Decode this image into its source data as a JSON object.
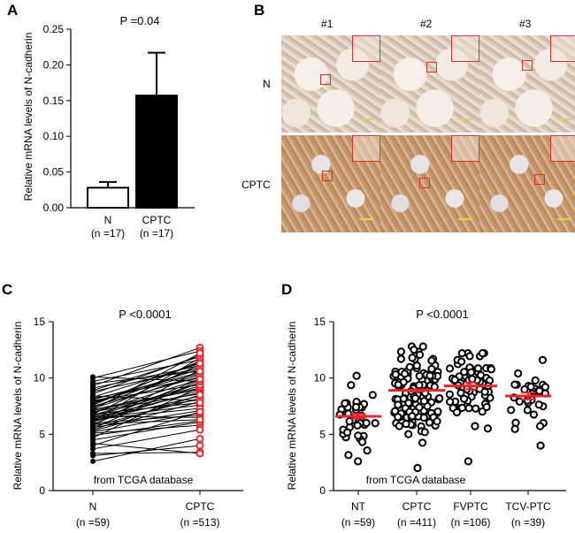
{
  "panel_labels": [
    "A",
    "B",
    "C",
    "D"
  ],
  "ihc": {
    "columns": [
      "#1",
      "#2",
      "#3"
    ],
    "rows": [
      "N",
      "CPTC"
    ]
  },
  "chart_data": [
    {
      "type": "bar",
      "panel": "A",
      "annotation": "P =0.04",
      "ylabel": "Relative mRNA levels of N-cadherin",
      "xlabel": "",
      "ylim": [
        0,
        0.25
      ],
      "yticks": [
        "0.00",
        "0.05",
        "0.10",
        "0.15",
        "0.20",
        "0.25"
      ],
      "categories": [
        "N",
        "CPTC"
      ],
      "category_sublabels": [
        "(n =17)",
        "(n =17)"
      ],
      "values": [
        0.028,
        0.157
      ],
      "errors": [
        0.008,
        0.06
      ],
      "bar_colors": [
        "#ffffff",
        "#000000"
      ]
    },
    {
      "type": "line",
      "panel": "C",
      "annotation": "P <0.0001",
      "ylabel": "Relative mRNA levels of  N-cadherin",
      "ylim": [
        0,
        15
      ],
      "yticks": [
        "0",
        "5",
        "10",
        "15"
      ],
      "categories": [
        "N",
        "CPTC"
      ],
      "category_sublabels": [
        "(n =59)",
        "(n =513)"
      ],
      "note": "from TCGA database",
      "colors": {
        "N": "#000000",
        "CPTC": "#e8262b"
      },
      "pairs": [
        [
          6.5,
          8.7
        ],
        [
          7.2,
          9.1
        ],
        [
          5.9,
          9.6
        ],
        [
          8.1,
          10.5
        ],
        [
          6.8,
          11.2
        ],
        [
          5.3,
          7.9
        ],
        [
          9.7,
          11.6
        ],
        [
          6.2,
          8.4
        ],
        [
          7.5,
          10.1
        ],
        [
          4.9,
          6.2
        ],
        [
          6.9,
          9.9
        ],
        [
          8.6,
          12.0
        ],
        [
          5.6,
          7.1
        ],
        [
          7.8,
          10.8
        ],
        [
          6.1,
          8.9
        ],
        [
          3.3,
          3.4
        ],
        [
          6.6,
          9.3
        ],
        [
          7.9,
          10.4
        ],
        [
          5.1,
          5.8
        ],
        [
          8.9,
          11.9
        ],
        [
          6.4,
          7.6
        ],
        [
          4.5,
          6.1
        ],
        [
          7.1,
          9.0
        ],
        [
          2.6,
          4.6
        ],
        [
          9.3,
          12.7
        ],
        [
          6.0,
          6.7
        ],
        [
          7.4,
          11.0
        ],
        [
          5.7,
          8.2
        ],
        [
          10.0,
          12.4
        ],
        [
          6.7,
          9.5
        ],
        [
          4.2,
          3.3
        ],
        [
          8.2,
          10.0
        ],
        [
          5.5,
          9.8
        ],
        [
          6.3,
          7.3
        ],
        [
          7.7,
          11.4
        ],
        [
          3.1,
          4.0
        ],
        [
          8.4,
          8.0
        ],
        [
          5.8,
          10.7
        ],
        [
          6.6,
          6.5
        ],
        [
          9.1,
          11.1
        ],
        [
          4.7,
          9.2
        ],
        [
          7.0,
          8.6
        ],
        [
          6.2,
          11.8
        ],
        [
          8.0,
          9.4
        ],
        [
          5.2,
          6.9
        ],
        [
          7.3,
          10.3
        ],
        [
          10.1,
          9.7
        ],
        [
          6.5,
          8.1
        ],
        [
          4.0,
          7.0
        ],
        [
          7.6,
          11.5
        ],
        [
          5.9,
          6.3
        ],
        [
          8.8,
          10.9
        ],
        [
          6.8,
          7.8
        ],
        [
          3.7,
          5.4
        ],
        [
          7.2,
          12.2
        ],
        [
          9.5,
          10.6
        ],
        [
          5.4,
          8.5
        ],
        [
          6.1,
          9.9
        ],
        [
          8.3,
          11.3
        ]
      ]
    },
    {
      "type": "scatter",
      "panel": "D",
      "annotation": "P <0.0001",
      "ylabel": "Relative mRNA levels of N-cadherin",
      "ylim": [
        0,
        15
      ],
      "yticks": [
        "0",
        "5",
        "10",
        "15"
      ],
      "categories": [
        "NT",
        "CPTC",
        "FVPTC",
        "TCV-PTC"
      ],
      "category_sublabels": [
        "(n =59)",
        "(n =411)",
        "(n =106)",
        "(n =39)"
      ],
      "note": "from TCGA database",
      "means": [
        6.6,
        8.9,
        9.3,
        8.4
      ],
      "sem": [
        0.22,
        0.1,
        0.3,
        0.3
      ],
      "ranges": [
        [
          2.6,
          10.2
        ],
        [
          2.0,
          12.8
        ],
        [
          2.6,
          12.2
        ],
        [
          4.0,
          11.6
        ]
      ],
      "marker_color": "#000000",
      "mean_color": "#e8262b"
    }
  ]
}
